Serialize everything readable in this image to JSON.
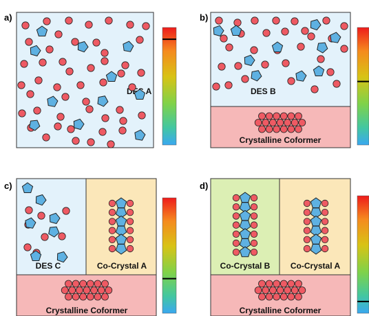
{
  "panels": [
    {
      "letter": "a)",
      "regions": [
        {
          "type": "liquid",
          "label": "DES A"
        }
      ],
      "gauge_level": 0.9
    },
    {
      "letter": "b)",
      "regions": [
        {
          "type": "liquid",
          "label": "DES B"
        },
        {
          "type": "coformer",
          "label": "Crystalline Coformer"
        }
      ],
      "gauge_level": 0.54
    },
    {
      "letter": "c)",
      "regions": [
        {
          "type": "liquid",
          "label": "DES C"
        },
        {
          "type": "cocrystal",
          "label": "Co-Crystal A"
        },
        {
          "type": "coformer",
          "label": "Crystalline Coformer"
        }
      ],
      "gauge_level": 0.3
    },
    {
      "letter": "d)",
      "regions": [
        {
          "type": "cocrystal-green",
          "label": "Co-Crystal B"
        },
        {
          "type": "cocrystal",
          "label": "Co-Crystal A"
        },
        {
          "type": "coformer",
          "label": "Crystalline Coformer"
        }
      ],
      "gauge_level": 0.1
    }
  ],
  "colors": {
    "liquid": "#e3f2fb",
    "cocrystal": "#fbe7b9",
    "cocrystal_green": "#dcefb4",
    "coformer": "#f6b8b8",
    "circle": "#ee5a63",
    "pentagon": "#5eb1e2",
    "outline": "#222222"
  },
  "icons": {
    "molecule": "red-circle",
    "coformer": "blue-pentagon"
  }
}
